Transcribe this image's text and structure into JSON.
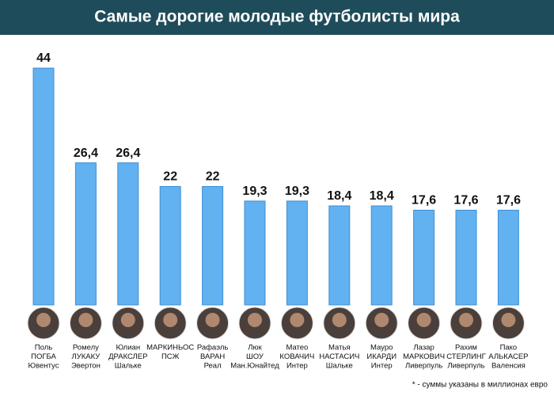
{
  "chart_data": {
    "type": "bar",
    "title": "Самые дорогие молодые футболисты мира",
    "categories": [
      [
        "Поль",
        "ПОГБА",
        "Ювентус"
      ],
      [
        "Ромелу",
        "ЛУКАКУ",
        "Эвертон"
      ],
      [
        "Юлиан",
        "ДРАКСЛЕР",
        "Шальке"
      ],
      [
        "МАРКИНЬОС",
        "ПСЖ"
      ],
      [
        "Рафаэль",
        "ВАРАН",
        "Реал"
      ],
      [
        "Люк",
        "ШОУ",
        "Ман.Юнайтед"
      ],
      [
        "Матео",
        "КОВАЧИЧ",
        "Интер"
      ],
      [
        "Матья",
        "НАСТАСИЧ",
        "Шальке"
      ],
      [
        "Мауро",
        "ИКАРДИ",
        "Интер"
      ],
      [
        "Лазар",
        "МАРКОВИЧ",
        "Ливерпуль"
      ],
      [
        "Рахим",
        "СТЕРЛИНГ",
        "Ливерпуль"
      ],
      [
        "Пако",
        "АЛЬКАСЕР",
        "Валенсия"
      ]
    ],
    "values": [
      44,
      26.4,
      26.4,
      22,
      22,
      19.3,
      19.3,
      18.4,
      18.4,
      17.6,
      17.6,
      17.6
    ],
    "value_labels": [
      "44",
      "26,4",
      "26,4",
      "22",
      "22",
      "19,3",
      "19,3",
      "18,4",
      "18,4",
      "17,6",
      "17,6",
      "17,6"
    ],
    "color": "#62b1f0",
    "footnote": "* - суммы указаны в миллионах евро"
  }
}
